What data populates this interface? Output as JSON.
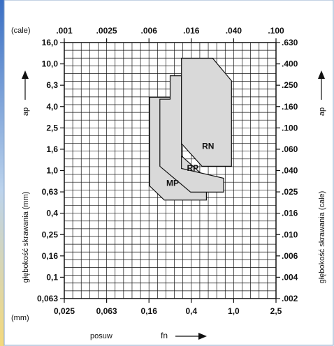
{
  "chart_data": {
    "type": "area",
    "units": {
      "top_left": "(cale)",
      "bottom_left": "(mm)"
    },
    "x_bottom_ticks": [
      "0,025",
      "0,063",
      "0,16",
      "0,4",
      "1,0",
      "2,5"
    ],
    "x_top_ticks": [
      ".001",
      ".0025",
      ".006",
      ".016",
      ".040",
      ".100"
    ],
    "y_left_ticks": [
      "16,0",
      "10,0",
      "6,3",
      "4,0",
      "2,5",
      "1,6",
      "1,0",
      "0,63",
      "0,4",
      "0,25",
      "0,16",
      "0,1",
      "0,063"
    ],
    "y_right_ticks": [
      ".630",
      ".400",
      ".250",
      ".160",
      ".100",
      ".060",
      ".040",
      ".025",
      ".016",
      ".010",
      ".006",
      ".004",
      ".002"
    ],
    "xlim": [
      0.025,
      2.5
    ],
    "ylim": [
      0.063,
      16.0
    ],
    "xscale": "log",
    "yscale": "log",
    "grid": true,
    "xlabel": "posuw",
    "xlabel_symbol": "fn",
    "ylabel_left": "głębokość skrawania (mm)",
    "ylabel_right": "głębokość skrawania (cale)",
    "ylabel_symbol": "ap",
    "series": [
      {
        "name": "MP",
        "fill": "#d9d9d9",
        "points": [
          [
            0.16,
            0.72
          ],
          [
            0.16,
            4.9
          ],
          [
            0.28,
            4.9
          ],
          [
            0.28,
            1.55
          ],
          [
            0.55,
            0.85
          ],
          [
            0.55,
            0.53
          ],
          [
            0.22,
            0.53
          ],
          [
            0.16,
            0.72
          ]
        ]
      },
      {
        "name": "RP",
        "fill": "#d9d9d9",
        "points": [
          [
            0.2,
            1.1
          ],
          [
            0.2,
            4.7
          ],
          [
            0.25,
            4.7
          ],
          [
            0.25,
            7.8
          ],
          [
            0.32,
            7.8
          ],
          [
            0.32,
            1.05
          ],
          [
            0.8,
            0.85
          ],
          [
            0.8,
            0.63
          ],
          [
            0.39,
            0.63
          ],
          [
            0.2,
            1.1
          ]
        ]
      },
      {
        "name": "RN",
        "fill": "#d9d9d9",
        "points": [
          [
            0.32,
            1.8
          ],
          [
            0.32,
            11.4
          ],
          [
            0.63,
            11.4
          ],
          [
            0.95,
            7.0
          ],
          [
            0.95,
            1.1
          ],
          [
            0.5,
            1.1
          ],
          [
            0.32,
            1.8
          ]
        ]
      }
    ],
    "series_label_positions": [
      {
        "name": "MP",
        "x": 0.23,
        "y": 0.72
      },
      {
        "name": "RP",
        "x": 0.36,
        "y": 1.0
      },
      {
        "name": "RN",
        "x": 0.5,
        "y": 1.6
      }
    ]
  }
}
